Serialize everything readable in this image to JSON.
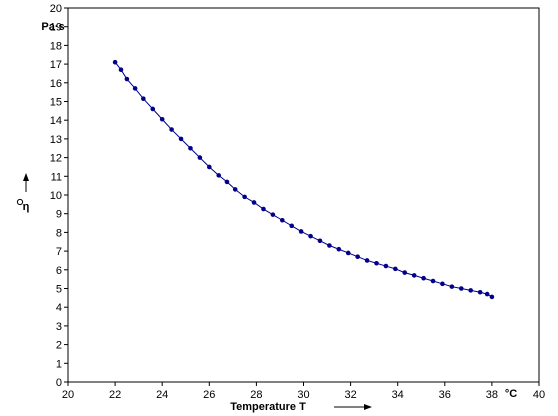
{
  "chart_data": {
    "type": "line",
    "xlabel": "Temperature T",
    "ylabel": "η",
    "x_unit": "°C",
    "y_unit": "Pa·s",
    "xlim": [
      20,
      40
    ],
    "ylim": [
      0,
      20
    ],
    "x_ticks": [
      20,
      22,
      24,
      26,
      28,
      30,
      32,
      34,
      36,
      38,
      40
    ],
    "y_ticks": [
      0,
      1,
      2,
      3,
      4,
      5,
      6,
      7,
      8,
      9,
      10,
      11,
      12,
      13,
      14,
      15,
      16,
      17,
      18,
      19,
      20
    ],
    "grid": false,
    "series": [
      {
        "color": "#00008b",
        "marker": "circle",
        "x": [
          22.0,
          22.25,
          22.5,
          22.85,
          23.2,
          23.6,
          24.0,
          24.4,
          24.8,
          25.2,
          25.6,
          26.0,
          26.4,
          26.75,
          27.1,
          27.5,
          27.9,
          28.3,
          28.7,
          29.1,
          29.5,
          29.9,
          30.3,
          30.7,
          31.1,
          31.5,
          31.9,
          32.3,
          32.7,
          33.1,
          33.5,
          33.9,
          34.3,
          34.7,
          35.1,
          35.5,
          35.9,
          36.3,
          36.7,
          37.1,
          37.5,
          37.8,
          38.0
        ],
        "y": [
          17.1,
          16.7,
          16.2,
          15.7,
          15.15,
          14.6,
          14.05,
          13.5,
          13.0,
          12.5,
          12.0,
          11.5,
          11.05,
          10.7,
          10.3,
          9.9,
          9.6,
          9.25,
          8.95,
          8.65,
          8.35,
          8.05,
          7.8,
          7.55,
          7.3,
          7.1,
          6.9,
          6.7,
          6.5,
          6.35,
          6.2,
          6.05,
          5.85,
          5.7,
          5.55,
          5.4,
          5.25,
          5.1,
          5.0,
          4.9,
          4.8,
          4.7,
          4.55
        ]
      }
    ]
  }
}
